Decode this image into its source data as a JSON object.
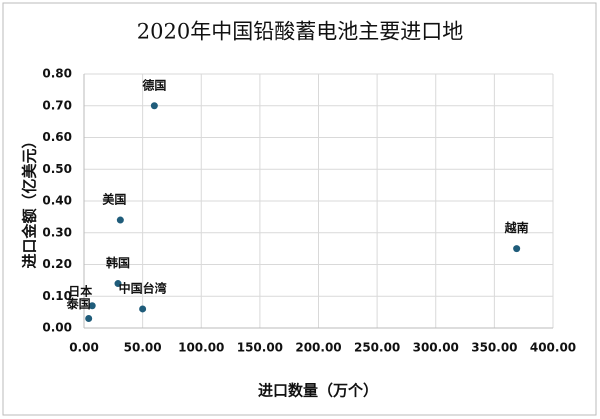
{
  "chart_data": {
    "type": "scatter",
    "title": "2020年中国铅酸蓄电池主要进口地",
    "x_label": "进口数量（万个）",
    "y_label": "进口金额（亿美元）",
    "point_labels": [
      "德国",
      "美国",
      "越南",
      "韩国",
      "日本",
      "泰国",
      "中国台湾"
    ],
    "x": [
      60,
      31,
      369,
      29,
      7,
      4,
      50
    ],
    "values": [
      0.7,
      0.34,
      0.25,
      0.14,
      0.07,
      0.03,
      0.06
    ],
    "color": "#1f5c7a",
    "xlim": [
      0,
      400
    ],
    "xticks": [
      {
        "value": 0,
        "label": "0.00"
      },
      {
        "value": 50,
        "label": "50.00"
      },
      {
        "value": 100,
        "label": "100.00"
      },
      {
        "value": 150,
        "label": "150.00"
      },
      {
        "value": 200,
        "label": "200.00"
      },
      {
        "value": 250,
        "label": "250.00"
      },
      {
        "value": 300,
        "label": "300.00"
      },
      {
        "value": 350,
        "label": "350.00"
      },
      {
        "value": 400,
        "label": "400.00"
      }
    ],
    "ylim": [
      0,
      0.8
    ],
    "yticks": [
      {
        "value": 0,
        "label": "0.00"
      },
      {
        "value": 0.1,
        "label": "0.10"
      },
      {
        "value": 0.2,
        "label": "0.20"
      },
      {
        "value": 0.3,
        "label": "0.30"
      },
      {
        "value": 0.4,
        "label": "0.40"
      },
      {
        "value": 0.5,
        "label": "0.50"
      },
      {
        "value": 0.6,
        "label": "0.60"
      },
      {
        "value": 0.7,
        "label": "0.70"
      },
      {
        "value": 0.8,
        "label": "0.80"
      }
    ],
    "grid": true
  }
}
